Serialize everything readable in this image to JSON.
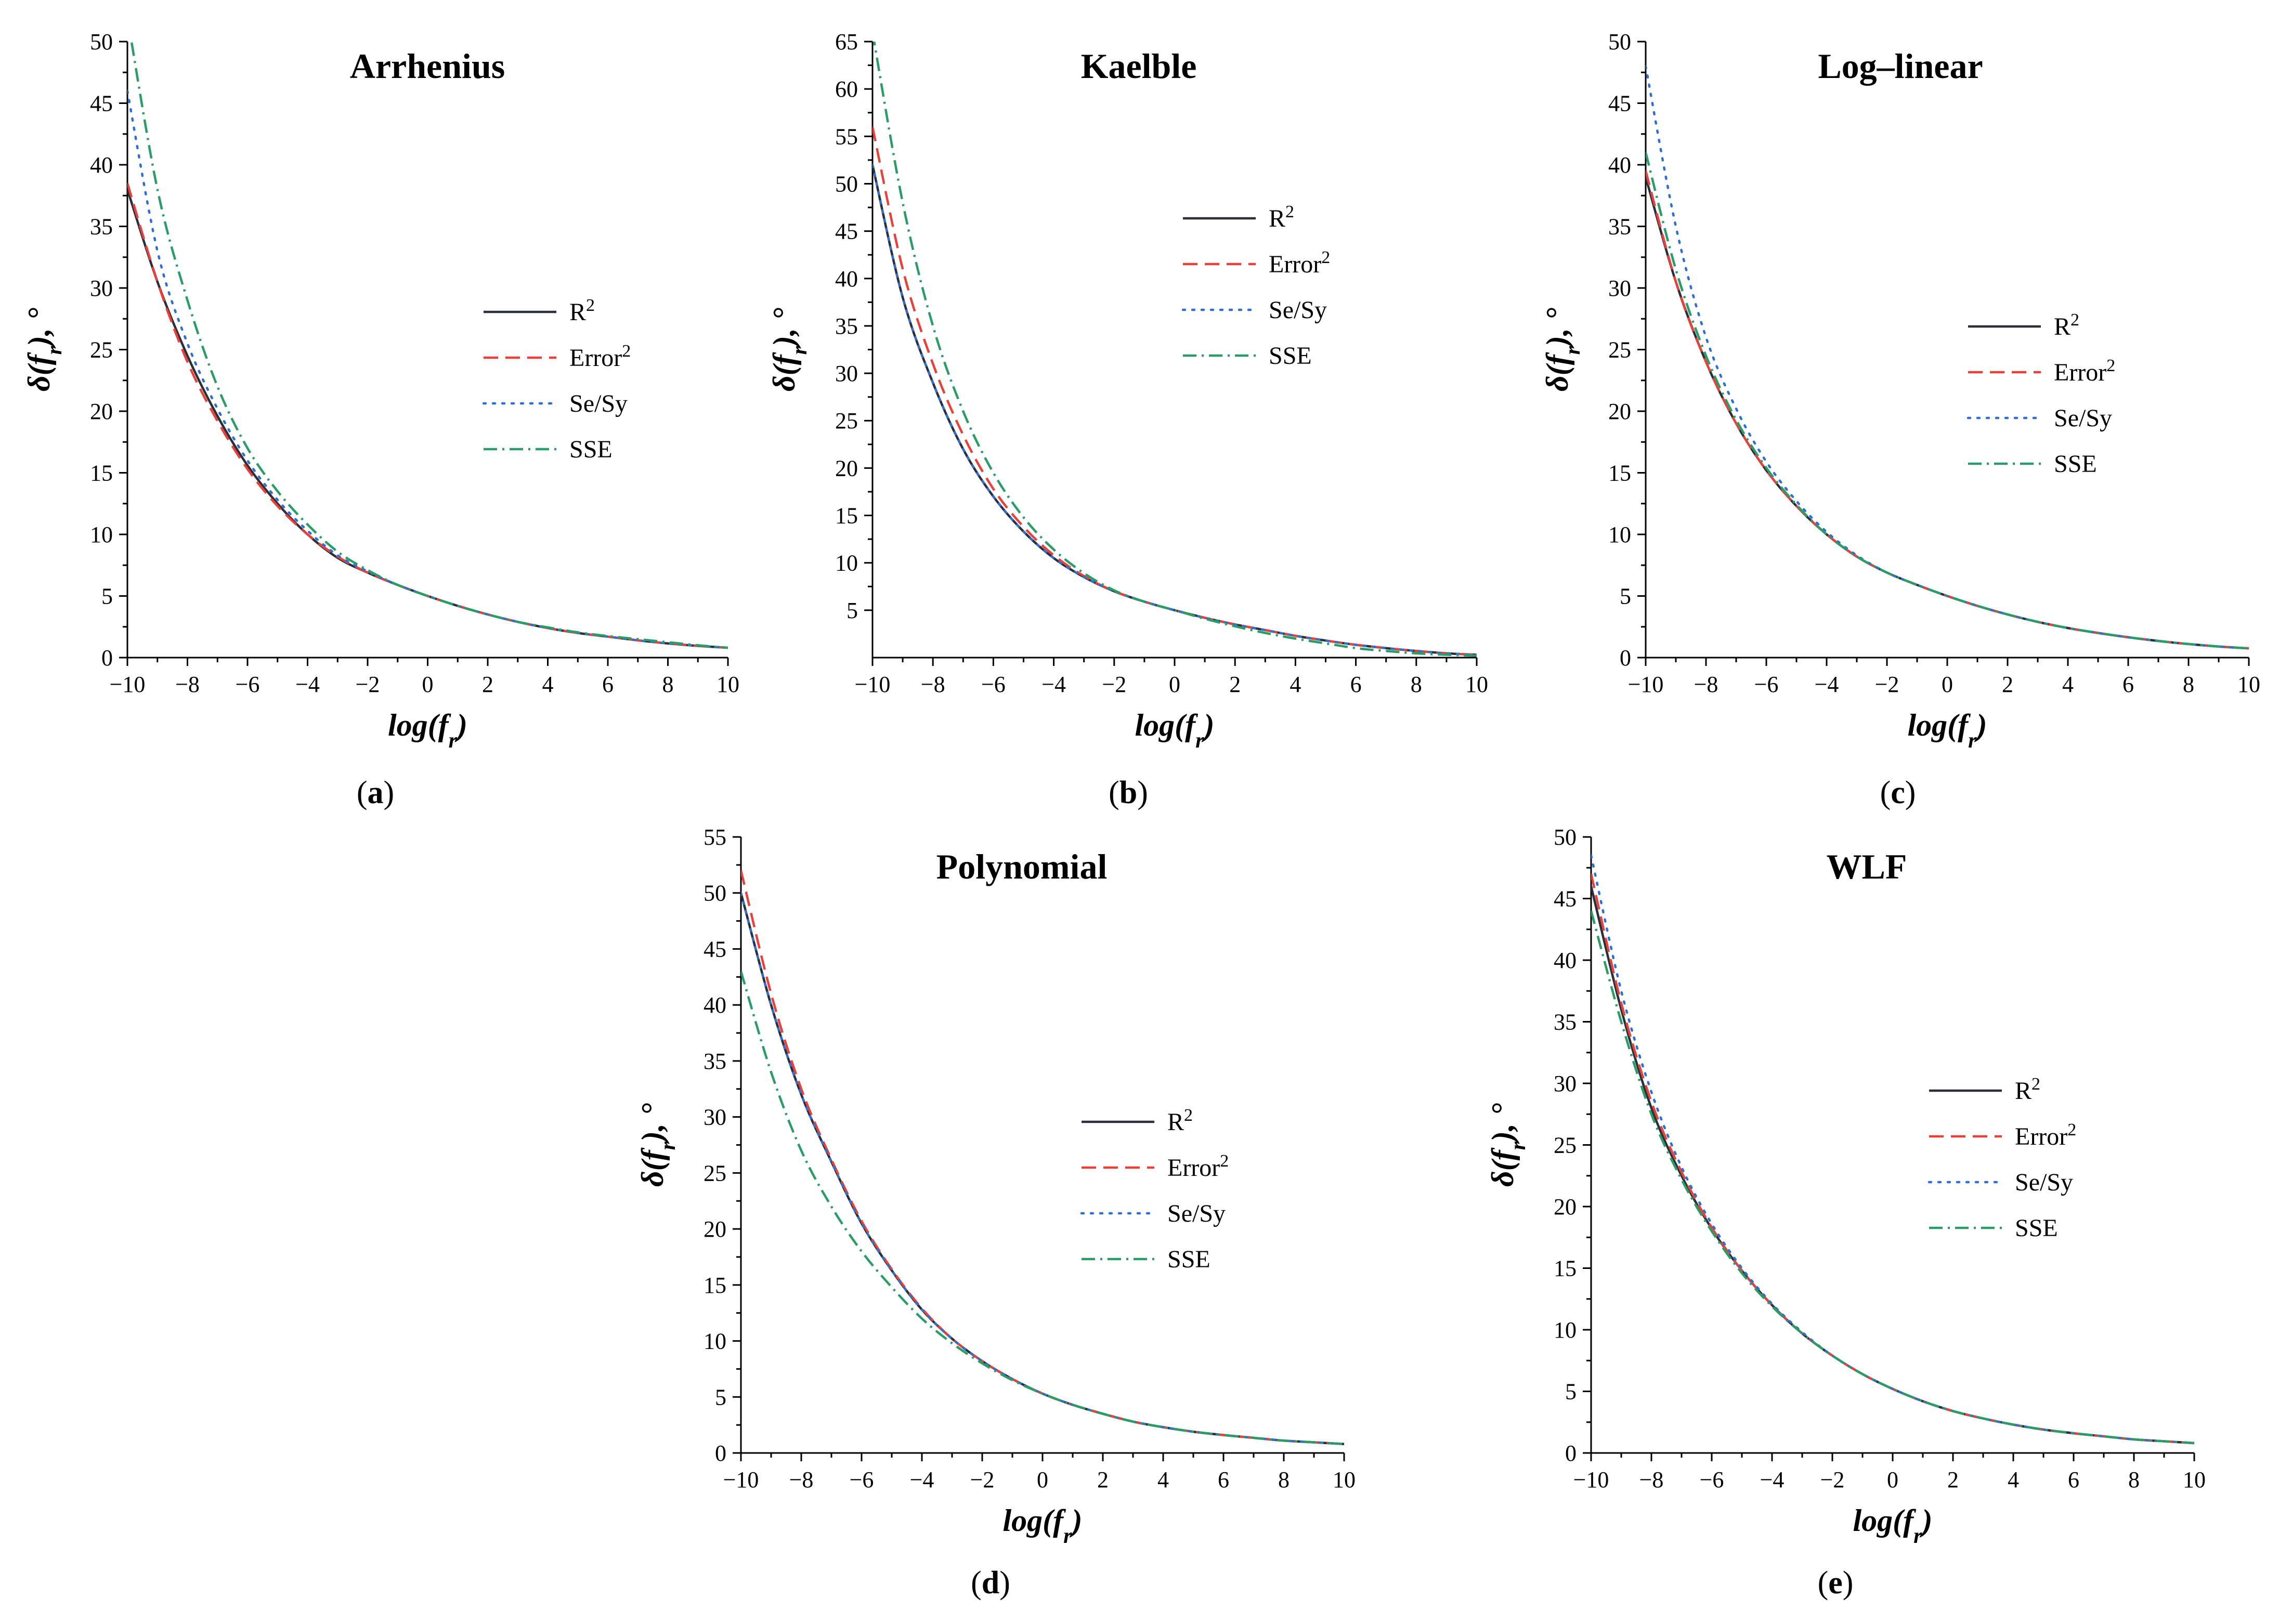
{
  "legend": {
    "r2": {
      "base": "R",
      "sup": "2"
    },
    "error2": {
      "base": "Error",
      "sup": "2"
    },
    "sesy": {
      "base": "Se/Sy",
      "sup": ""
    },
    "sse": {
      "base": "SSE",
      "sup": ""
    }
  },
  "series_styles": {
    "r2": {
      "color": "#2b2f3a",
      "dash": ""
    },
    "error2": {
      "color": "#e8403a",
      "dash": "28 14"
    },
    "sesy": {
      "color": "#2f6fd4",
      "dash": "4 14"
    },
    "sse": {
      "color": "#2a9d66",
      "dash": "26 10 4 10"
    }
  },
  "axis_text": {
    "xlabel_main": "log(f",
    "xlabel_sub": "r",
    "xlabel_end": ")",
    "ylabel_main": "δ(f",
    "ylabel_sub": "r",
    "ylabel_end": "),  °"
  },
  "chart_data": [
    {
      "id": "a",
      "type": "line",
      "title": "Arrhenius",
      "panel_label": {
        "open": "(",
        "letter": "a",
        "close": ")"
      },
      "xlim": [
        -10,
        10
      ],
      "ylim": [
        0,
        50
      ],
      "xticks": [
        -10,
        -8,
        -6,
        -4,
        -2,
        0,
        2,
        4,
        6,
        8,
        10
      ],
      "xtick_labels": [
        "−10",
        "−8",
        "−6",
        "−4",
        "−2",
        "0",
        "2",
        "4",
        "6",
        "8",
        "10"
      ],
      "yticks": [
        0,
        5,
        10,
        15,
        20,
        25,
        30,
        35,
        40,
        45,
        50
      ],
      "ytick_labels": [
        "0",
        "5",
        "10",
        "15",
        "20",
        "25",
        "30",
        "35",
        "40",
        "45",
        "50"
      ],
      "x": [
        -10,
        -9,
        -8,
        -7,
        -6,
        -5,
        -4,
        -3,
        -2,
        -1,
        0,
        1,
        2,
        3,
        4,
        5,
        6,
        7,
        8,
        9,
        10
      ],
      "series": [
        {
          "key": "r2",
          "name": "R2",
          "values": [
            38,
            30.5,
            24.5,
            19.6,
            15.6,
            12.5,
            10,
            8.1,
            6.9,
            5.9,
            5,
            4.2,
            3.5,
            2.9,
            2.4,
            2,
            1.7,
            1.4,
            1.15,
            0.95,
            0.8
          ]
        },
        {
          "key": "error2",
          "name": "Error2",
          "values": [
            38.5,
            30.5,
            24,
            19.2,
            15.3,
            12.3,
            10,
            8.2,
            6.9,
            5.9,
            5,
            4.2,
            3.5,
            2.9,
            2.4,
            2,
            1.7,
            1.4,
            1.15,
            0.95,
            0.8
          ]
        },
        {
          "key": "sesy",
          "name": "Se/Sy",
          "values": [
            46,
            33,
            25.5,
            20.2,
            16,
            12.8,
            10.3,
            8.3,
            7,
            5.9,
            5,
            4.2,
            3.5,
            2.9,
            2.4,
            2,
            1.7,
            1.4,
            1.15,
            0.95,
            0.8
          ]
        },
        {
          "key": "sse",
          "name": "SSE",
          "values": [
            52,
            38,
            29,
            22,
            17,
            13.5,
            10.8,
            8.6,
            7.1,
            5.9,
            5,
            4.2,
            3.5,
            2.9,
            2.45,
            2.05,
            1.75,
            1.5,
            1.25,
            1,
            0.8
          ]
        }
      ]
    },
    {
      "id": "b",
      "type": "line",
      "title": "Kaelble",
      "panel_label": {
        "open": "(",
        "letter": "b",
        "close": ")"
      },
      "xlim": [
        -10,
        10
      ],
      "ylim": [
        0,
        65
      ],
      "xticks": [
        -10,
        -8,
        -6,
        -4,
        -2,
        0,
        2,
        4,
        6,
        8,
        10
      ],
      "xtick_labels": [
        "−10",
        "−8",
        "−6",
        "−4",
        "−2",
        "0",
        "2",
        "4",
        "6",
        "8",
        "10"
      ],
      "yticks": [
        5,
        10,
        15,
        20,
        25,
        30,
        35,
        40,
        45,
        50,
        55,
        60,
        65
      ],
      "ytick_labels": [
        "5",
        "10",
        "15",
        "20",
        "25",
        "30",
        "35",
        "40",
        "45",
        "50",
        "55",
        "60",
        "65"
      ],
      "x": [
        -10,
        -9,
        -8,
        -7,
        -6,
        -5,
        -4,
        -3,
        -2,
        -1,
        0,
        1,
        2,
        3,
        4,
        5,
        6,
        7,
        8,
        9,
        10
      ],
      "series": [
        {
          "key": "r2",
          "name": "R2",
          "values": [
            52,
            38,
            29,
            22,
            17,
            13.3,
            10.5,
            8.5,
            7,
            5.9,
            5,
            4.2,
            3.5,
            2.9,
            2.3,
            1.8,
            1.35,
            1,
            0.7,
            0.45,
            0.3
          ]
        },
        {
          "key": "error2",
          "name": "Error2",
          "values": [
            56,
            41,
            31,
            23.5,
            17.8,
            13.8,
            10.8,
            8.6,
            7,
            5.9,
            5,
            4.2,
            3.5,
            2.9,
            2.3,
            1.8,
            1.35,
            1,
            0.7,
            0.45,
            0.3
          ]
        },
        {
          "key": "sesy",
          "name": "Se/Sy",
          "values": [
            52,
            38,
            29,
            22,
            17,
            13.3,
            10.5,
            8.5,
            7,
            5.9,
            5,
            4.2,
            3.5,
            2.9,
            2.3,
            1.8,
            1.35,
            1,
            0.7,
            0.45,
            0.3
          ]
        },
        {
          "key": "sse",
          "name": "SSE",
          "values": [
            66,
            48,
            35,
            26,
            19.5,
            14.8,
            11.4,
            8.9,
            7.1,
            5.9,
            5,
            4.1,
            3.3,
            2.6,
            2,
            1.5,
            1,
            0.7,
            0.45,
            0.3,
            0.2
          ]
        }
      ]
    },
    {
      "id": "c",
      "type": "line",
      "title": "Log–linear",
      "panel_label": {
        "open": "(",
        "letter": "c",
        "close": ")"
      },
      "xlim": [
        -10,
        10
      ],
      "ylim": [
        0,
        50
      ],
      "xticks": [
        -10,
        -8,
        -6,
        -4,
        -2,
        0,
        2,
        4,
        6,
        8,
        10
      ],
      "xtick_labels": [
        "−10",
        "−8",
        "−6",
        "−4",
        "−2",
        "0",
        "2",
        "4",
        "6",
        "8",
        "10"
      ],
      "yticks": [
        0,
        5,
        10,
        15,
        20,
        25,
        30,
        35,
        40,
        45,
        50
      ],
      "ytick_labels": [
        "0",
        "5",
        "10",
        "15",
        "20",
        "25",
        "30",
        "35",
        "40",
        "45",
        "50"
      ],
      "x": [
        -10,
        -9,
        -8,
        -7,
        -6,
        -5,
        -4,
        -3,
        -2,
        -1,
        0,
        1,
        2,
        3,
        4,
        5,
        6,
        7,
        8,
        9,
        10
      ],
      "series": [
        {
          "key": "r2",
          "name": "R2",
          "values": [
            39,
            30.5,
            24,
            19,
            15.2,
            12.3,
            10,
            8.2,
            6.9,
            5.9,
            5,
            4.2,
            3.5,
            2.9,
            2.4,
            2,
            1.65,
            1.35,
            1.1,
            0.9,
            0.75
          ]
        },
        {
          "key": "error2",
          "name": "Error2",
          "values": [
            39.5,
            30.5,
            24,
            19,
            15.2,
            12.3,
            10,
            8.2,
            6.9,
            5.9,
            5,
            4.2,
            3.5,
            2.9,
            2.4,
            2,
            1.65,
            1.35,
            1.1,
            0.9,
            0.75
          ]
        },
        {
          "key": "sesy",
          "name": "Se/Sy",
          "values": [
            48,
            35,
            26,
            20.2,
            15.9,
            12.7,
            10.2,
            8.3,
            6.9,
            5.9,
            5,
            4.2,
            3.5,
            2.9,
            2.4,
            2,
            1.65,
            1.35,
            1.1,
            0.9,
            0.75
          ]
        },
        {
          "key": "sse",
          "name": "SSE",
          "values": [
            41,
            31.5,
            24.5,
            19.3,
            15.4,
            12.4,
            10,
            8.2,
            6.9,
            5.9,
            5,
            4.2,
            3.5,
            2.9,
            2.4,
            2,
            1.65,
            1.35,
            1.1,
            0.9,
            0.75
          ]
        }
      ]
    },
    {
      "id": "d",
      "type": "line",
      "title": "Polynomial",
      "panel_label": {
        "open": "(",
        "letter": "d",
        "close": ")"
      },
      "xlim": [
        -10,
        10
      ],
      "ylim": [
        0,
        55
      ],
      "xticks": [
        -10,
        -8,
        -6,
        -4,
        -2,
        0,
        2,
        4,
        6,
        8,
        10
      ],
      "xtick_labels": [
        "−10",
        "−8",
        "−6",
        "−4",
        "−2",
        "0",
        "2",
        "4",
        "6",
        "8",
        "10"
      ],
      "yticks": [
        0,
        5,
        10,
        15,
        20,
        25,
        30,
        35,
        40,
        45,
        50,
        55
      ],
      "ytick_labels": [
        "0",
        "5",
        "10",
        "15",
        "20",
        "25",
        "30",
        "35",
        "40",
        "45",
        "50",
        "55"
      ],
      "x": [
        -10,
        -9,
        -8,
        -7,
        -6,
        -5,
        -4,
        -3,
        -2,
        -1,
        0,
        1,
        2,
        3,
        4,
        5,
        6,
        7,
        8,
        9,
        10
      ],
      "series": [
        {
          "key": "r2",
          "name": "R2",
          "values": [
            50,
            40,
            32,
            26,
            20.5,
            16.3,
            12.8,
            10.2,
            8.2,
            6.6,
            5.3,
            4.3,
            3.5,
            2.8,
            2.3,
            1.9,
            1.6,
            1.35,
            1.1,
            0.95,
            0.8
          ]
        },
        {
          "key": "error2",
          "name": "Error2",
          "values": [
            52,
            41,
            32.5,
            26.2,
            20.7,
            16.4,
            12.9,
            10.2,
            8.2,
            6.6,
            5.3,
            4.3,
            3.5,
            2.8,
            2.3,
            1.9,
            1.6,
            1.35,
            1.1,
            0.95,
            0.8
          ]
        },
        {
          "key": "sesy",
          "name": "Se/Sy",
          "values": [
            50,
            40,
            32,
            26,
            20.5,
            16.3,
            12.8,
            10.2,
            8.2,
            6.6,
            5.3,
            4.3,
            3.5,
            2.8,
            2.3,
            1.9,
            1.6,
            1.35,
            1.1,
            0.95,
            0.8
          ]
        },
        {
          "key": "sse",
          "name": "SSE",
          "values": [
            43,
            34,
            27,
            22,
            18,
            14.8,
            12,
            9.8,
            8,
            6.5,
            5.3,
            4.3,
            3.5,
            2.8,
            2.3,
            1.9,
            1.6,
            1.35,
            1.1,
            0.95,
            0.8
          ]
        }
      ]
    },
    {
      "id": "e",
      "type": "line",
      "title": "WLF",
      "panel_label": {
        "open": "(",
        "letter": "e",
        "close": ")"
      },
      "xlim": [
        -10,
        10
      ],
      "ylim": [
        0,
        50
      ],
      "xticks": [
        -10,
        -8,
        -6,
        -4,
        -2,
        0,
        2,
        4,
        6,
        8,
        10
      ],
      "xtick_labels": [
        "−10",
        "−8",
        "−6",
        "−4",
        "−2",
        "0",
        "2",
        "4",
        "6",
        "8",
        "10"
      ],
      "yticks": [
        0,
        5,
        10,
        15,
        20,
        25,
        30,
        35,
        40,
        45,
        50
      ],
      "ytick_labels": [
        "0",
        "5",
        "10",
        "15",
        "20",
        "25",
        "30",
        "35",
        "40",
        "45",
        "50"
      ],
      "x": [
        -10,
        -9,
        -8,
        -7,
        -6,
        -5,
        -4,
        -3,
        -2,
        -1,
        0,
        1,
        2,
        3,
        4,
        5,
        6,
        7,
        8,
        9,
        10
      ],
      "series": [
        {
          "key": "r2",
          "name": "R2",
          "values": [
            46,
            36,
            28,
            22.5,
            18.2,
            14.8,
            12,
            9.7,
            7.9,
            6.4,
            5.2,
            4.2,
            3.4,
            2.8,
            2.3,
            1.9,
            1.6,
            1.35,
            1.1,
            0.95,
            0.8
          ]
        },
        {
          "key": "error2",
          "name": "Error2",
          "values": [
            47,
            36.5,
            28.5,
            22.8,
            18.3,
            14.8,
            12,
            9.7,
            7.9,
            6.4,
            5.2,
            4.2,
            3.4,
            2.8,
            2.3,
            1.9,
            1.6,
            1.35,
            1.1,
            0.95,
            0.8
          ]
        },
        {
          "key": "sesy",
          "name": "Se/Sy",
          "values": [
            48.5,
            37.5,
            29.3,
            23.2,
            18.6,
            15,
            12.1,
            9.8,
            7.9,
            6.4,
            5.2,
            4.2,
            3.4,
            2.8,
            2.3,
            1.9,
            1.6,
            1.35,
            1.1,
            0.95,
            0.8
          ]
        },
        {
          "key": "sse",
          "name": "SSE",
          "values": [
            44,
            35,
            27.5,
            22.2,
            18,
            14.6,
            11.9,
            9.7,
            7.9,
            6.4,
            5.2,
            4.2,
            3.4,
            2.8,
            2.3,
            1.9,
            1.6,
            1.35,
            1.1,
            0.95,
            0.8
          ]
        }
      ]
    }
  ]
}
